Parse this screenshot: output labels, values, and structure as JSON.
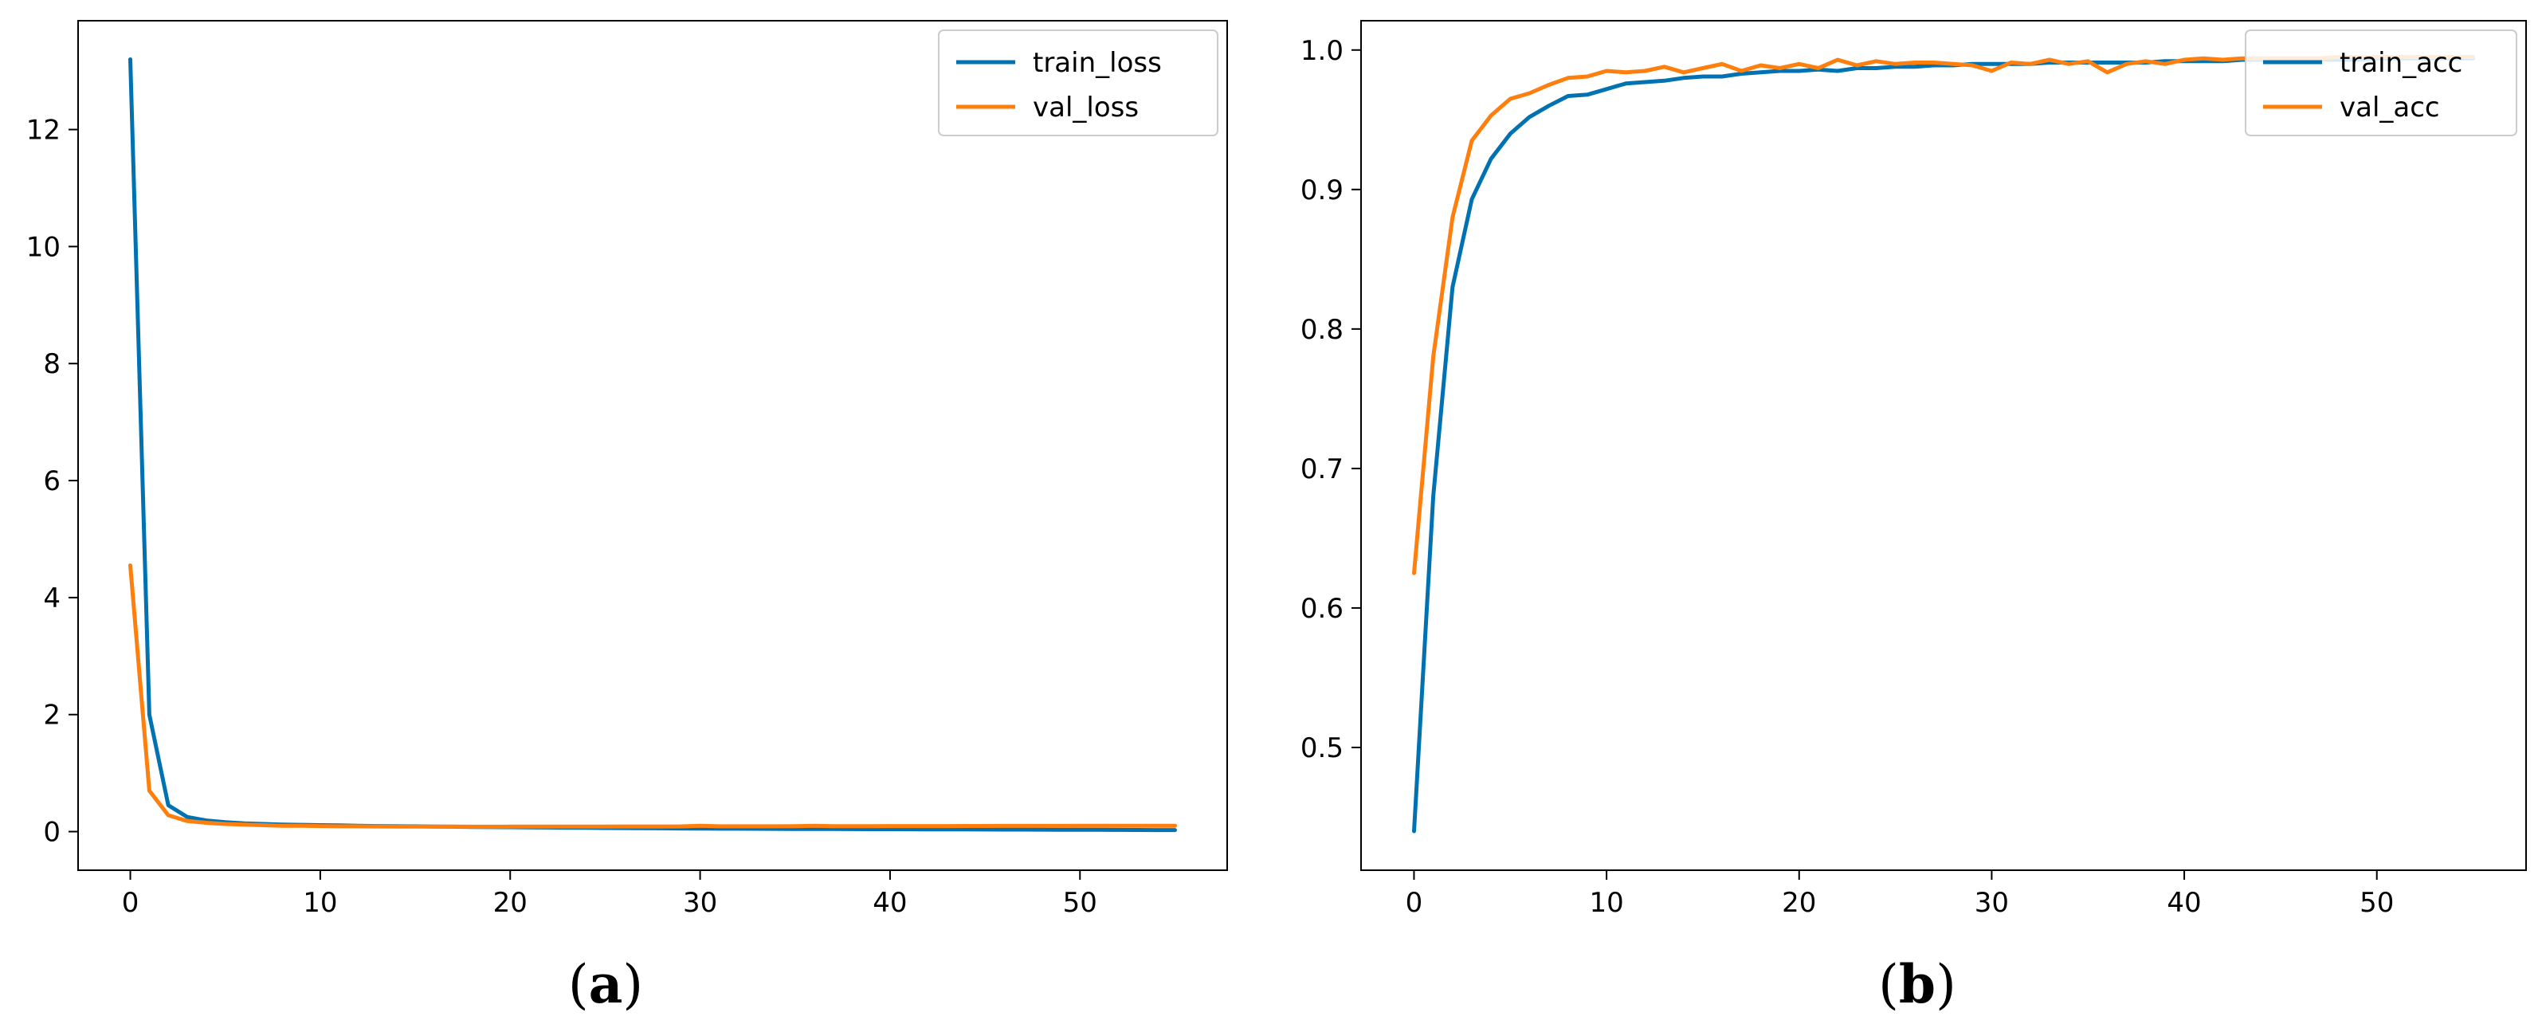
{
  "chart_data": [
    {
      "type": "line",
      "caption": "(a)",
      "caption_letter": "a",
      "x": [
        0,
        1,
        2,
        3,
        4,
        5,
        6,
        7,
        8,
        9,
        10,
        11,
        12,
        13,
        14,
        15,
        16,
        17,
        18,
        19,
        20,
        21,
        22,
        23,
        24,
        25,
        26,
        27,
        28,
        29,
        30,
        31,
        32,
        33,
        34,
        35,
        36,
        37,
        38,
        39,
        40,
        41,
        42,
        43,
        44,
        45,
        46,
        47,
        48,
        49,
        50,
        51,
        52,
        53,
        54,
        55
      ],
      "xlim": [
        -2.75,
        57.75
      ],
      "ylim": [
        -0.66,
        13.86
      ],
      "xticks": [
        0,
        10,
        20,
        30,
        40,
        50
      ],
      "yticks": [
        0,
        2,
        4,
        6,
        8,
        10,
        12
      ],
      "legend_position": "upper right",
      "grid": false,
      "series": [
        {
          "name": "train_loss",
          "color": "#0072b2",
          "values": [
            13.2,
            2.0,
            0.45,
            0.25,
            0.19,
            0.16,
            0.14,
            0.13,
            0.12,
            0.115,
            0.11,
            0.105,
            0.1,
            0.095,
            0.092,
            0.09,
            0.087,
            0.084,
            0.08,
            0.077,
            0.075,
            0.072,
            0.07,
            0.067,
            0.065,
            0.062,
            0.06,
            0.058,
            0.056,
            0.054,
            0.052,
            0.05,
            0.049,
            0.048,
            0.047,
            0.046,
            0.045,
            0.044,
            0.043,
            0.042,
            0.041,
            0.04,
            0.039,
            0.038,
            0.037,
            0.036,
            0.035,
            0.034,
            0.033,
            0.032,
            0.031,
            0.03,
            0.029,
            0.028,
            0.027,
            0.026
          ]
        },
        {
          "name": "val_loss",
          "color": "#ff7f0e",
          "values": [
            4.55,
            0.7,
            0.28,
            0.18,
            0.15,
            0.13,
            0.12,
            0.11,
            0.1,
            0.1,
            0.095,
            0.09,
            0.09,
            0.088,
            0.087,
            0.086,
            0.085,
            0.085,
            0.084,
            0.084,
            0.085,
            0.085,
            0.086,
            0.086,
            0.087,
            0.087,
            0.088,
            0.088,
            0.088,
            0.089,
            0.1,
            0.09,
            0.09,
            0.091,
            0.091,
            0.092,
            0.1,
            0.092,
            0.093,
            0.093,
            0.094,
            0.094,
            0.095,
            0.095,
            0.096,
            0.096,
            0.097,
            0.097,
            0.098,
            0.098,
            0.099,
            0.099,
            0.1,
            0.1,
            0.1,
            0.1
          ]
        }
      ]
    },
    {
      "type": "line",
      "caption": "(b)",
      "caption_letter": "b",
      "x": [
        0,
        1,
        2,
        3,
        4,
        5,
        6,
        7,
        8,
        9,
        10,
        11,
        12,
        13,
        14,
        15,
        16,
        17,
        18,
        19,
        20,
        21,
        22,
        23,
        24,
        25,
        26,
        27,
        28,
        29,
        30,
        31,
        32,
        33,
        34,
        35,
        36,
        37,
        38,
        39,
        40,
        41,
        42,
        43,
        44,
        45,
        46,
        47,
        48,
        49,
        50,
        51,
        52,
        53,
        54,
        55
      ],
      "xlim": [
        -2.75,
        57.75
      ],
      "ylim": [
        0.412,
        1.021
      ],
      "xticks": [
        0,
        10,
        20,
        30,
        40,
        50
      ],
      "yticks": [
        0.5,
        0.6,
        0.7,
        0.8,
        0.9,
        1.0
      ],
      "ytick_labels": [
        "0.5",
        "0.6",
        "0.7",
        "0.8",
        "0.9",
        "1.0"
      ],
      "legend_position": "upper right",
      "grid": false,
      "series": [
        {
          "name": "train_acc",
          "color": "#0072b2",
          "values": [
            0.44,
            0.68,
            0.83,
            0.893,
            0.922,
            0.94,
            0.952,
            0.96,
            0.967,
            0.968,
            0.972,
            0.976,
            0.977,
            0.978,
            0.98,
            0.981,
            0.981,
            0.983,
            0.984,
            0.985,
            0.985,
            0.986,
            0.985,
            0.987,
            0.987,
            0.988,
            0.988,
            0.989,
            0.989,
            0.99,
            0.99,
            0.99,
            0.99,
            0.991,
            0.991,
            0.991,
            0.991,
            0.991,
            0.991,
            0.992,
            0.992,
            0.992,
            0.992,
            0.993,
            0.993,
            0.993,
            0.993,
            0.993,
            0.993,
            0.993,
            0.994,
            0.994,
            0.994,
            0.994,
            0.994,
            0.994
          ]
        },
        {
          "name": "val_acc",
          "color": "#ff7f0e",
          "values": [
            0.625,
            0.78,
            0.88,
            0.935,
            0.953,
            0.965,
            0.969,
            0.975,
            0.98,
            0.981,
            0.985,
            0.984,
            0.985,
            0.988,
            0.984,
            0.987,
            0.99,
            0.985,
            0.989,
            0.987,
            0.99,
            0.987,
            0.993,
            0.989,
            0.992,
            0.99,
            0.991,
            0.991,
            0.99,
            0.989,
            0.985,
            0.991,
            0.99,
            0.993,
            0.99,
            0.992,
            0.984,
            0.99,
            0.992,
            0.99,
            0.993,
            0.994,
            0.993,
            0.994,
            0.994,
            0.994,
            0.994,
            0.994,
            0.995,
            0.995,
            0.995,
            0.995,
            0.995,
            0.995,
            0.995,
            0.995
          ]
        }
      ]
    }
  ]
}
